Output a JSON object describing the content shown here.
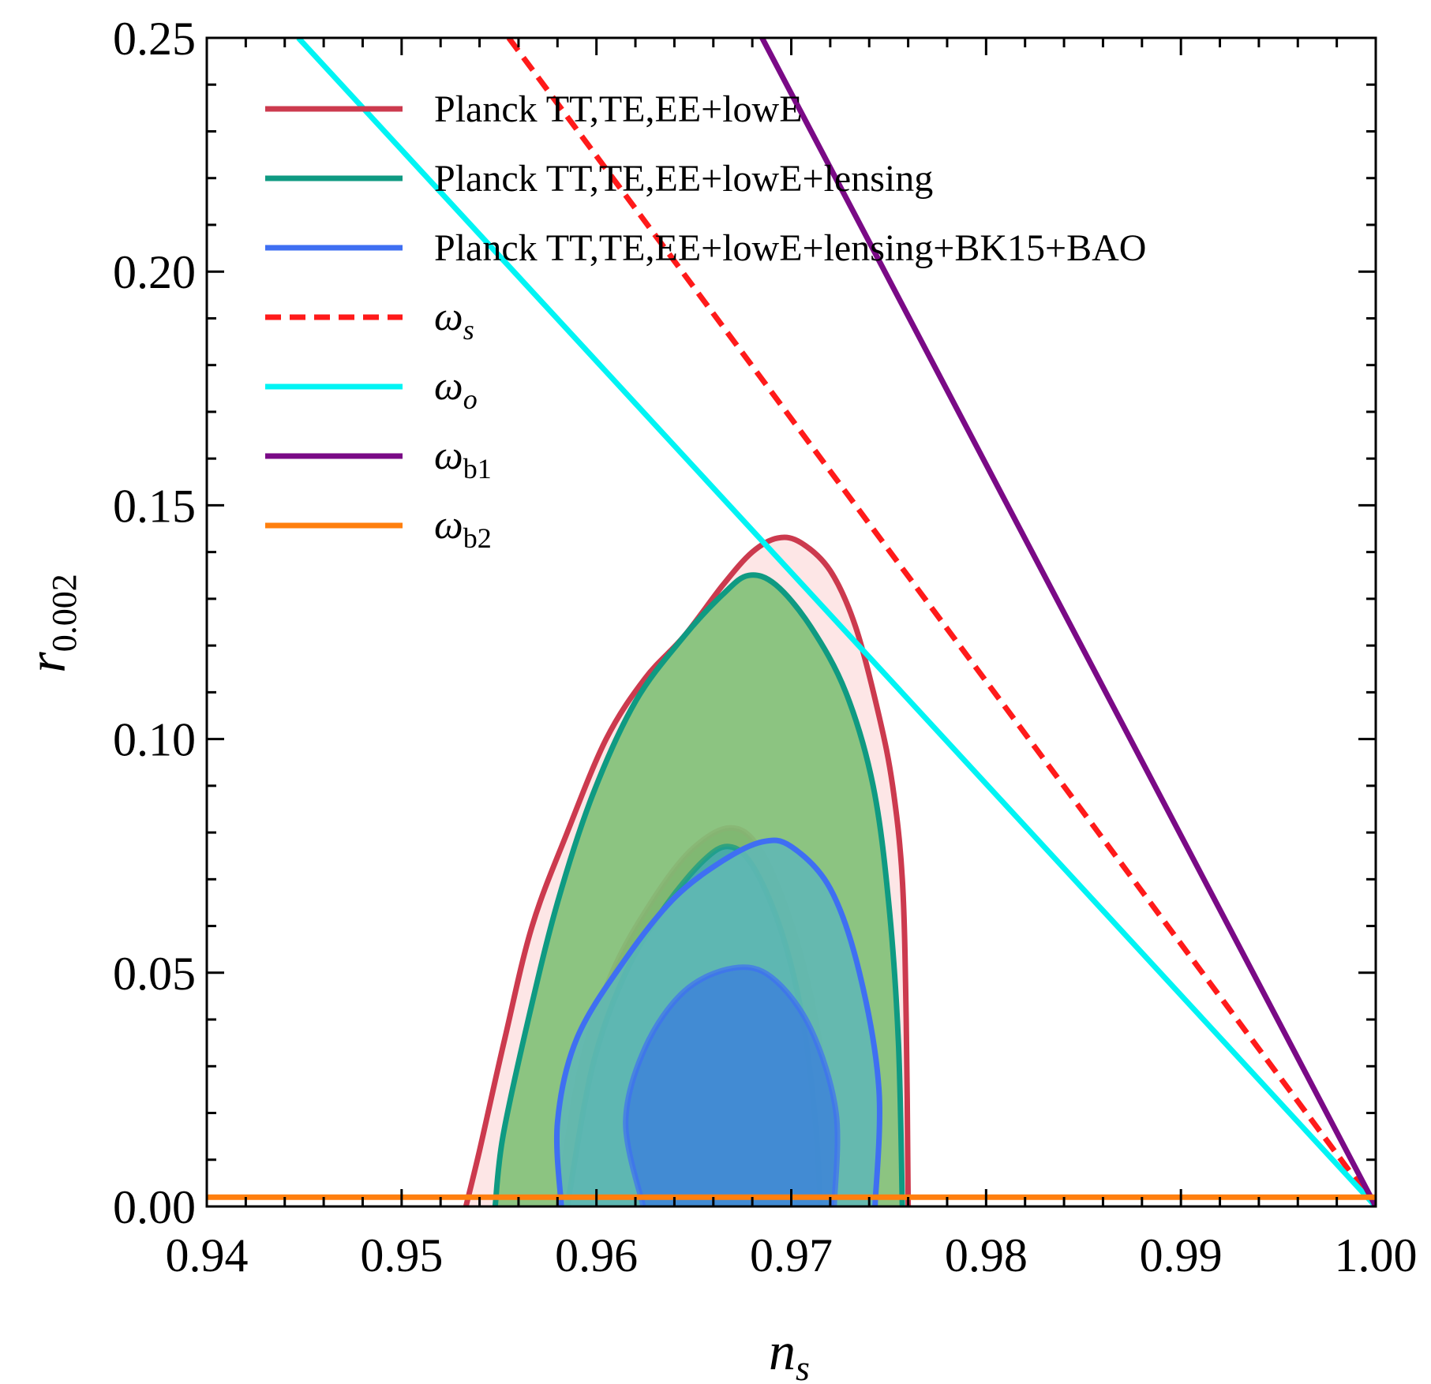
{
  "chart_data": {
    "type": "line",
    "title": "",
    "xlabel": "n",
    "xlabel_sub": "s",
    "ylabel": "r",
    "ylabel_sub": "0.002",
    "xlim": [
      0.94,
      1.0
    ],
    "ylim": [
      0.0,
      0.25
    ],
    "xticks": [
      0.94,
      0.95,
      0.96,
      0.97,
      0.98,
      0.99,
      1.0
    ],
    "xtick_labels": [
      "0.94",
      "0.95",
      "0.96",
      "0.97",
      "0.98",
      "0.99",
      "1.00"
    ],
    "yticks": [
      0.0,
      0.05,
      0.1,
      0.15,
      0.2,
      0.25
    ],
    "ytick_labels": [
      "0.00",
      "0.05",
      "0.10",
      "0.15",
      "0.20",
      "0.25"
    ],
    "grid": false,
    "legend_position": "top-left",
    "contours": [
      {
        "name": "Planck TT,TE,EE+lowE",
        "color": "#cc3a4e",
        "fill_outer": "#fde6e6",
        "fill_inner": "#6e5a3a",
        "outer": [
          [
            0.9533,
            0.0
          ],
          [
            0.954,
            0.012
          ],
          [
            0.9553,
            0.036
          ],
          [
            0.9567,
            0.06
          ],
          [
            0.9585,
            0.08
          ],
          [
            0.9605,
            0.1
          ],
          [
            0.9625,
            0.113
          ],
          [
            0.9645,
            0.122
          ],
          [
            0.9665,
            0.133
          ],
          [
            0.968,
            0.14
          ],
          [
            0.9693,
            0.143
          ],
          [
            0.9705,
            0.142
          ],
          [
            0.972,
            0.136
          ],
          [
            0.9733,
            0.124
          ],
          [
            0.9745,
            0.105
          ],
          [
            0.9752,
            0.09
          ],
          [
            0.9757,
            0.07
          ],
          [
            0.9759,
            0.04
          ],
          [
            0.976,
            0.0
          ]
        ],
        "inner": [
          [
            0.958,
            0.0
          ],
          [
            0.9592,
            0.03
          ],
          [
            0.9608,
            0.05
          ],
          [
            0.9628,
            0.065
          ],
          [
            0.9648,
            0.076
          ],
          [
            0.9668,
            0.081
          ],
          [
            0.9683,
            0.077
          ],
          [
            0.9698,
            0.063
          ],
          [
            0.971,
            0.045
          ],
          [
            0.9718,
            0.025
          ],
          [
            0.9722,
            0.0
          ]
        ]
      },
      {
        "name": "Planck TT,TE,EE+lowE+lensing",
        "color": "#0f9a82",
        "fill_outer": "#80c075",
        "fill_inner": "#3fa8b0",
        "outer": [
          [
            0.9548,
            0.0
          ],
          [
            0.9552,
            0.015
          ],
          [
            0.9565,
            0.04
          ],
          [
            0.958,
            0.065
          ],
          [
            0.9598,
            0.088
          ],
          [
            0.962,
            0.108
          ],
          [
            0.9645,
            0.122
          ],
          [
            0.9665,
            0.131
          ],
          [
            0.9678,
            0.135
          ],
          [
            0.9692,
            0.133
          ],
          [
            0.971,
            0.124
          ],
          [
            0.9728,
            0.11
          ],
          [
            0.9742,
            0.09
          ],
          [
            0.975,
            0.065
          ],
          [
            0.9755,
            0.035
          ],
          [
            0.9757,
            0.0
          ]
        ],
        "inner": [
          [
            0.9585,
            0.0
          ],
          [
            0.9598,
            0.03
          ],
          [
            0.9615,
            0.05
          ],
          [
            0.9635,
            0.064
          ],
          [
            0.9655,
            0.074
          ],
          [
            0.9668,
            0.077
          ],
          [
            0.968,
            0.073
          ],
          [
            0.9694,
            0.06
          ],
          [
            0.9705,
            0.042
          ],
          [
            0.9712,
            0.02
          ],
          [
            0.9715,
            0.0
          ]
        ]
      },
      {
        "name": "Planck TT,TE,EE+lowE+lensing+BK15+BAO",
        "color": "#3f6ff2",
        "fill_outer": "#60b8b4",
        "fill_inner": "#3d84d8",
        "outer": [
          [
            0.9582,
            0.0
          ],
          [
            0.958,
            0.018
          ],
          [
            0.959,
            0.036
          ],
          [
            0.9615,
            0.053
          ],
          [
            0.964,
            0.066
          ],
          [
            0.9665,
            0.074
          ],
          [
            0.9685,
            0.078
          ],
          [
            0.97,
            0.077
          ],
          [
            0.972,
            0.068
          ],
          [
            0.9735,
            0.05
          ],
          [
            0.9745,
            0.025
          ],
          [
            0.9743,
            0.0
          ]
        ],
        "inner": [
          [
            0.9624,
            0.0
          ],
          [
            0.9615,
            0.018
          ],
          [
            0.9625,
            0.034
          ],
          [
            0.9645,
            0.046
          ],
          [
            0.967,
            0.051
          ],
          [
            0.969,
            0.049
          ],
          [
            0.971,
            0.038
          ],
          [
            0.9723,
            0.02
          ],
          [
            0.9722,
            0.0
          ]
        ]
      }
    ],
    "series": [
      {
        "name": "Planck TT,TE,EE+lowE",
        "legend_label": "Planck TT,TE,EE+lowE",
        "color": "#cc3a4e",
        "style": "solid",
        "legend_only": true
      },
      {
        "name": "Planck TT,TE,EE+lowE+lensing",
        "legend_label": "Planck TT,TE,EE+lowE+lensing",
        "color": "#0f9a82",
        "style": "solid",
        "legend_only": true
      },
      {
        "name": "Planck TT,TE,EE+lowE+lensing+BK15+BAO",
        "legend_label": "Planck TT,TE,EE+lowE+lensing+BK15+BAO",
        "color": "#3f6ff2",
        "style": "solid",
        "legend_only": true
      },
      {
        "name": "omega_s",
        "symbol": "ω",
        "sub": "s",
        "sub_italic": true,
        "color": "#ff1a1a",
        "style": "dashed",
        "x": [
          0.9555,
          1.0
        ],
        "y": [
          0.25,
          0.0
        ]
      },
      {
        "name": "omega_o",
        "symbol": "ω",
        "sub": "o",
        "sub_italic": true,
        "color": "#00f4f4",
        "style": "solid",
        "x": [
          0.9447,
          1.0
        ],
        "y": [
          0.25,
          0.0
        ]
      },
      {
        "name": "omega_b1",
        "symbol": "ω",
        "sub": "b1",
        "sub_italic": false,
        "color": "#7a0a86",
        "style": "solid",
        "x": [
          0.9685,
          1.0
        ],
        "y": [
          0.25,
          0.0
        ]
      },
      {
        "name": "omega_b2",
        "symbol": "ω",
        "sub": "b2",
        "sub_italic": false,
        "color": "#ff7f0e",
        "style": "solid",
        "x": [
          0.94,
          1.0
        ],
        "y": [
          0.002,
          0.002
        ]
      }
    ]
  }
}
